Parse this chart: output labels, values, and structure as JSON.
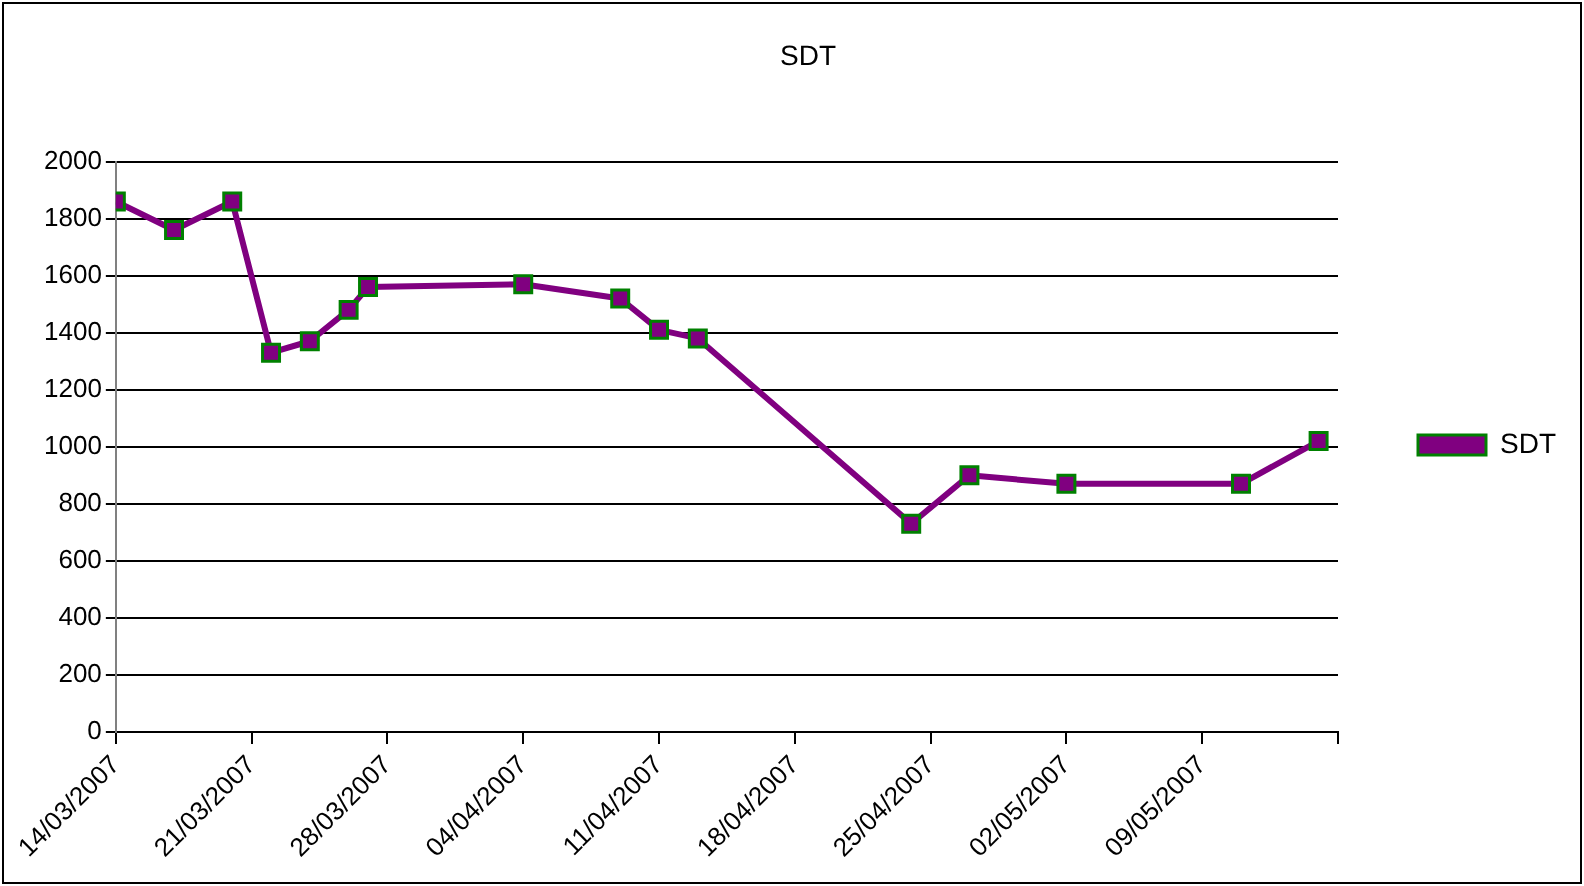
{
  "chart_data": {
    "type": "line",
    "title": "SDT",
    "x": [
      "2007-03-14",
      "2007-03-17",
      "2007-03-20",
      "2007-03-22",
      "2007-03-24",
      "2007-03-26",
      "2007-03-27",
      "2007-04-04",
      "2007-04-09",
      "2007-04-11",
      "2007-04-13",
      "2007-04-24",
      "2007-04-27",
      "2007-05-02",
      "2007-05-11",
      "2007-05-15"
    ],
    "series": [
      {
        "name": "SDT",
        "color": "#800080",
        "values": [
          1860,
          1760,
          1860,
          1330,
          1370,
          1480,
          1560,
          1570,
          1520,
          1410,
          1380,
          730,
          900,
          870,
          870,
          1020
        ]
      }
    ],
    "xlim": [
      "2007-03-14",
      "2007-05-16"
    ],
    "xticks": [
      {
        "value": "2007-03-14",
        "label": "14/03/2007"
      },
      {
        "value": "2007-03-21",
        "label": "21/03/2007"
      },
      {
        "value": "2007-03-28",
        "label": "28/03/2007"
      },
      {
        "value": "2007-04-04",
        "label": "04/04/2007"
      },
      {
        "value": "2007-04-11",
        "label": "11/04/2007"
      },
      {
        "value": "2007-04-18",
        "label": "18/04/2007"
      },
      {
        "value": "2007-04-25",
        "label": "25/04/2007"
      },
      {
        "value": "2007-05-02",
        "label": "02/05/2007"
      },
      {
        "value": "2007-05-09",
        "label": "09/05/2007"
      },
      {
        "value": "2007-05-16",
        "label": null
      }
    ],
    "ylim": [
      0,
      2000
    ],
    "yticks": [
      0,
      200,
      400,
      600,
      800,
      1000,
      1200,
      1400,
      1600,
      1800,
      2000
    ],
    "grid": "y",
    "legend": "right",
    "marker": "square",
    "line_style": "solid"
  }
}
